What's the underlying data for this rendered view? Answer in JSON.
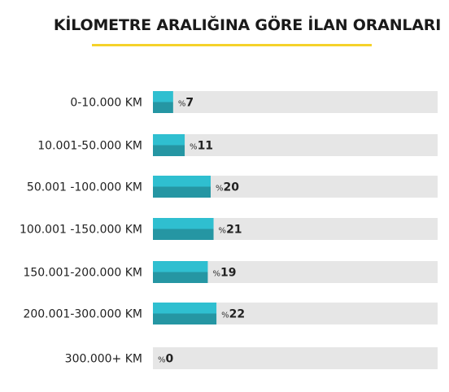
{
  "chart_data": {
    "type": "bar",
    "orientation": "horizontal",
    "title": "KİLOMETRE ARALIĞINA GÖRE İLAN ORANLARI",
    "categories": [
      "0-10.000 KM",
      "10.001-50.000 KM",
      "50.001 -100.000 KM",
      "100.001 -150.000 KM",
      "150.001-200.000 KM",
      "200.001-300.000 KM",
      "300.000+ KM"
    ],
    "values": [
      7,
      11,
      20,
      21,
      19,
      22,
      0
    ],
    "value_prefix": "%",
    "xlim": [
      0,
      100
    ],
    "grid": false,
    "legend": "none",
    "colors": {
      "bar_top": "#2fbfd0",
      "bar_bottom": "#2596a3",
      "track": "#e6e6e6",
      "title_underline": "#f5d22a"
    }
  }
}
